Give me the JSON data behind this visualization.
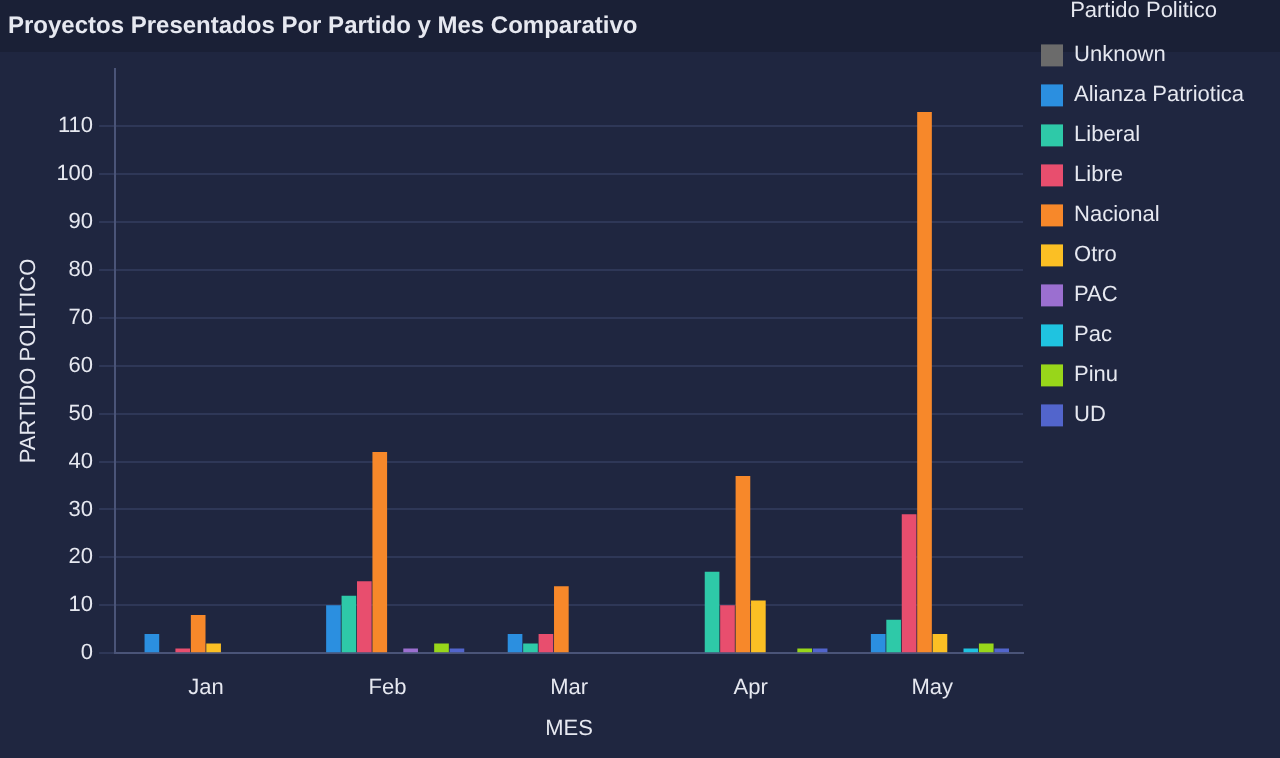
{
  "chart_data": {
    "type": "bar",
    "title": "Proyectos Presentados Por Partido y Mes Comparativo",
    "xlabel": "MES",
    "ylabel": "PARTIDO POLITICO",
    "legend_title": "Partido Politico",
    "categories": [
      "Jan",
      "Feb",
      "Mar",
      "Apr",
      "May"
    ],
    "series": [
      {
        "name": "Unknown",
        "color": "#6b6b6b",
        "values": [
          0,
          0,
          0,
          0,
          0
        ]
      },
      {
        "name": "Alianza Patriotica",
        "color": "#2b8fe0",
        "values": [
          4,
          10,
          4,
          0,
          4
        ]
      },
      {
        "name": "Liberal",
        "color": "#2ec9a8",
        "values": [
          0,
          12,
          2,
          17,
          7
        ]
      },
      {
        "name": "Libre",
        "color": "#e84e6e",
        "values": [
          1,
          15,
          4,
          10,
          29
        ]
      },
      {
        "name": "Nacional",
        "color": "#f7882a",
        "values": [
          8,
          42,
          14,
          37,
          113
        ]
      },
      {
        "name": "Otro",
        "color": "#fbbf24",
        "values": [
          2,
          0,
          0,
          11,
          4
        ]
      },
      {
        "name": "PAC",
        "color": "#9b6fd0",
        "values": [
          0,
          1,
          0,
          0,
          0
        ]
      },
      {
        "name": "Pac",
        "color": "#1fc3e0",
        "values": [
          0,
          0,
          0,
          0,
          1
        ]
      },
      {
        "name": "Pinu",
        "color": "#98d61a",
        "values": [
          0,
          2,
          0,
          1,
          2
        ]
      },
      {
        "name": "UD",
        "color": "#5265cc",
        "values": [
          0,
          1,
          0,
          1,
          1
        ]
      }
    ],
    "ylim": [
      0,
      122
    ],
    "yticks": [
      0,
      10,
      20,
      30,
      40,
      50,
      60,
      70,
      80,
      90,
      100,
      110
    ],
    "grid": "y",
    "legend": "right"
  }
}
